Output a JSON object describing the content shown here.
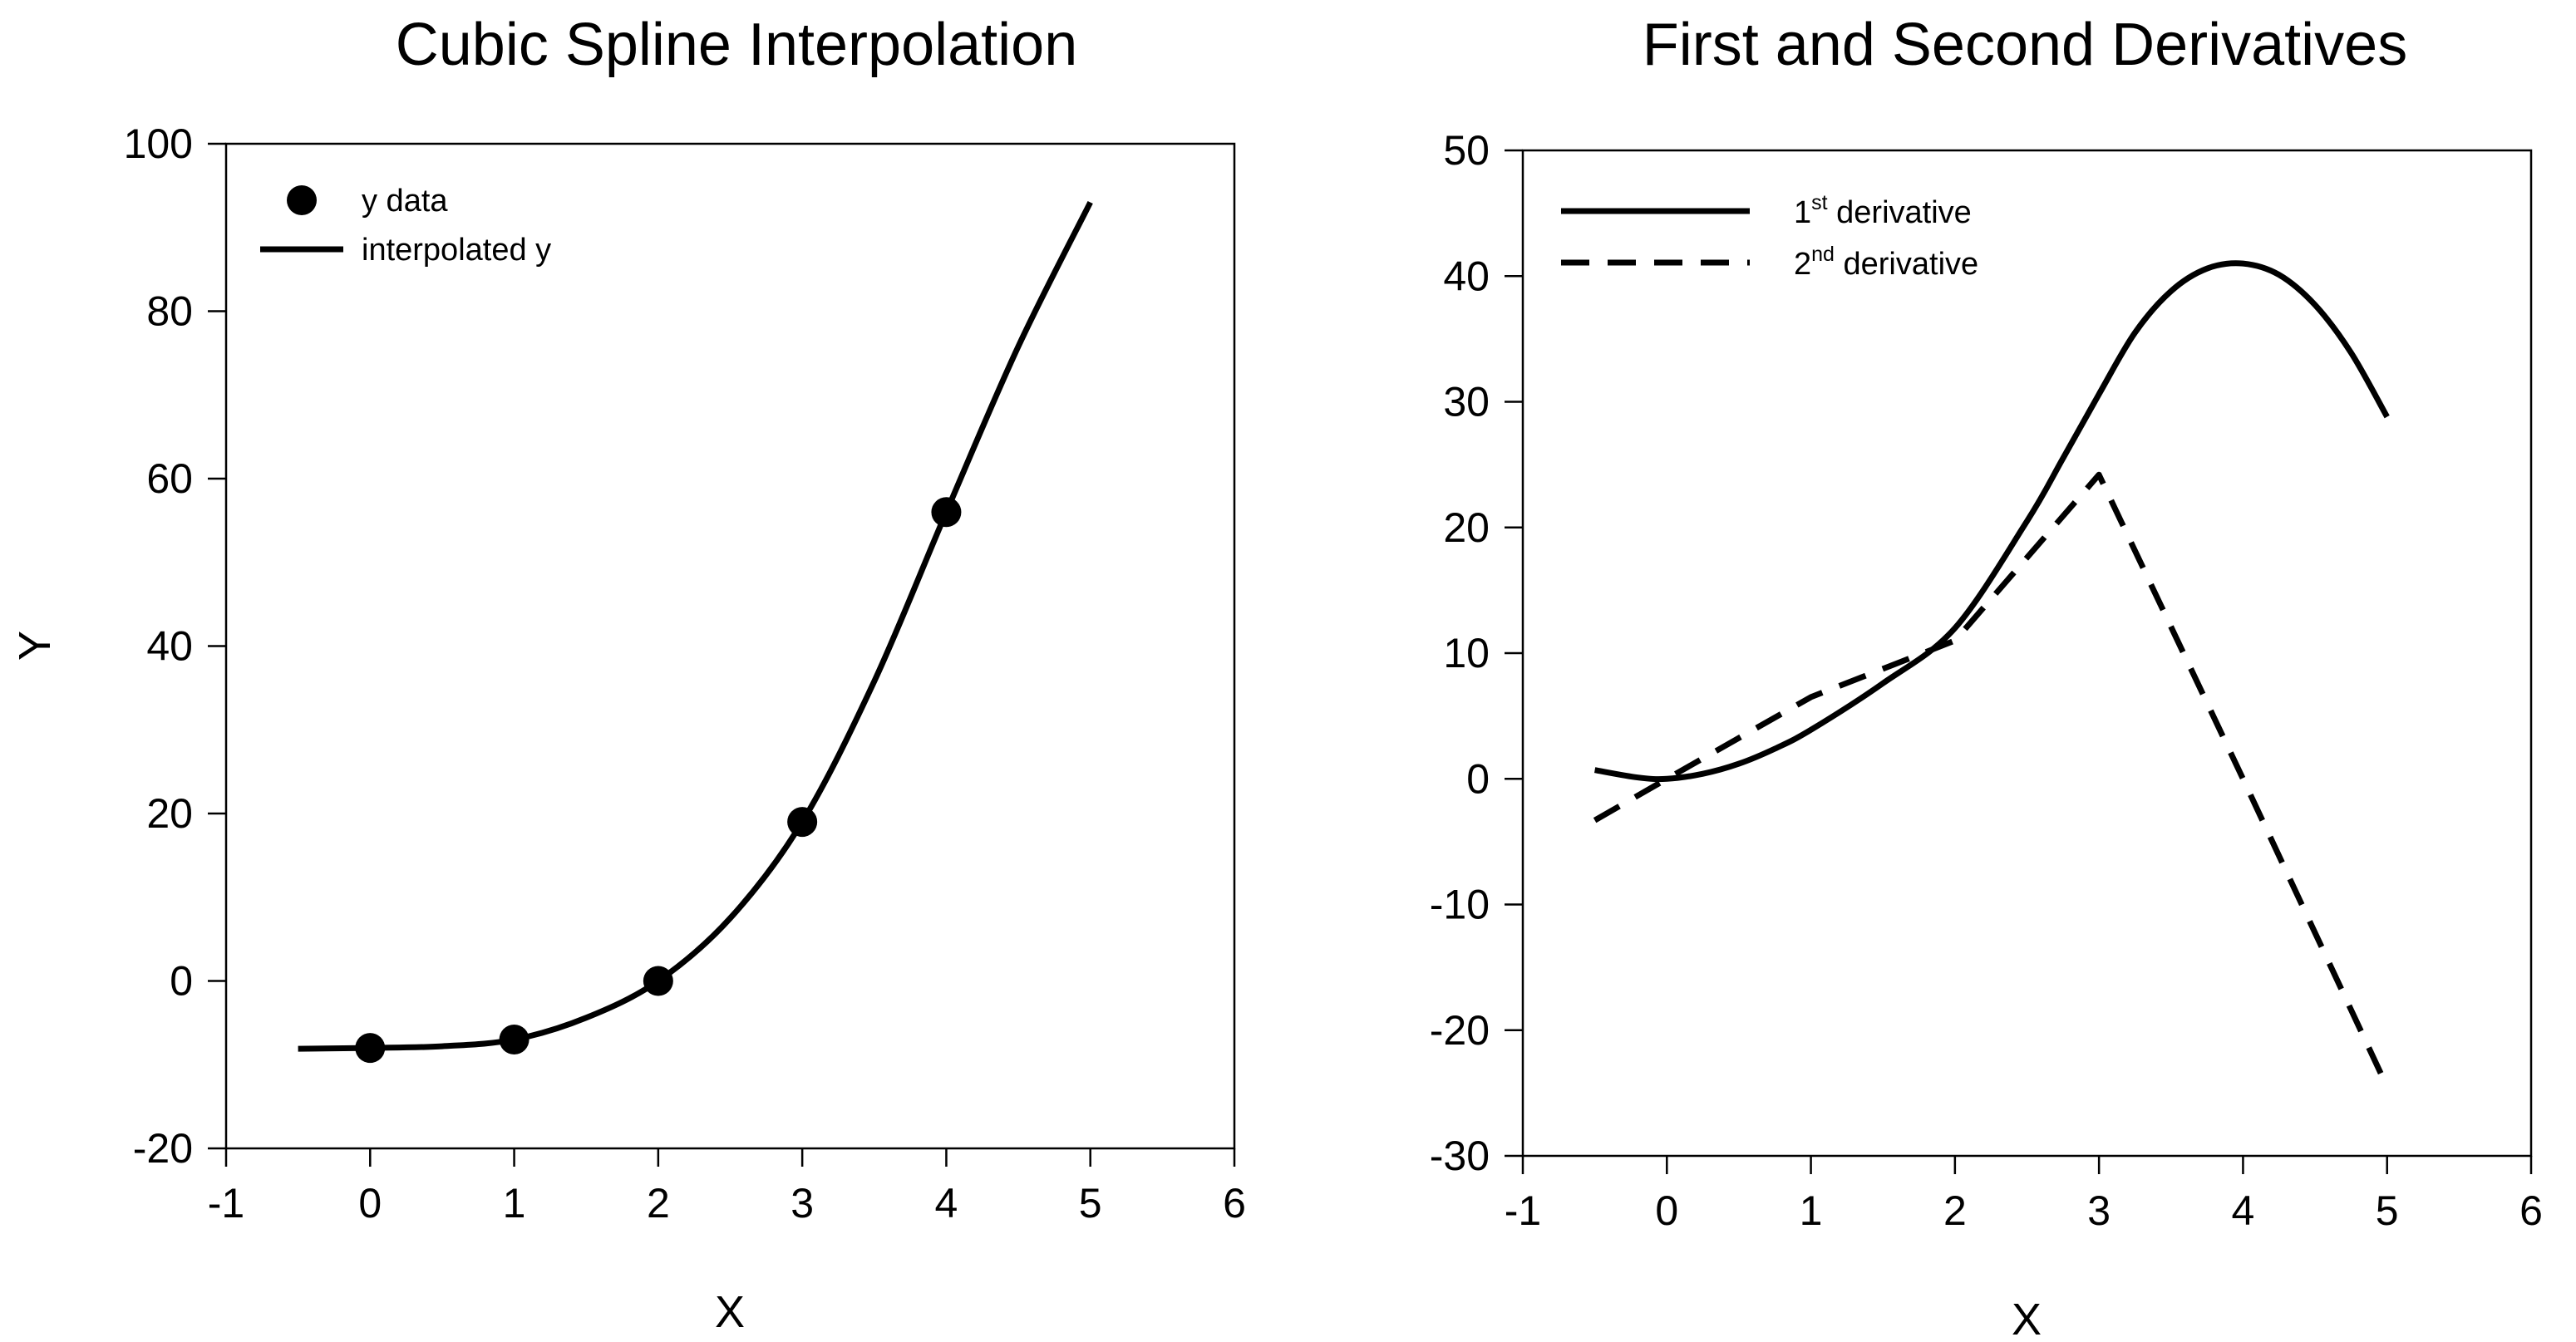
{
  "chart_data": [
    {
      "type": "line",
      "title": "Cubic Spline Interpolation",
      "xlabel": "X",
      "ylabel": "Y",
      "xlim": [
        -1,
        6
      ],
      "ylim": [
        -20,
        100
      ],
      "xticks": [
        -1,
        0,
        1,
        2,
        3,
        4,
        5,
        6
      ],
      "yticks": [
        -20,
        0,
        20,
        40,
        60,
        80,
        100
      ],
      "grid": false,
      "legend_position": "top-left",
      "series": [
        {
          "name": "y data",
          "style": "markers",
          "x": [
            0,
            1,
            2,
            3,
            4
          ],
          "y": [
            -8,
            -7,
            0,
            19,
            56
          ]
        },
        {
          "name": "interpolated y",
          "style": "solid",
          "x": [
            -0.5,
            0,
            0.5,
            1,
            1.5,
            2,
            2.5,
            3,
            3.5,
            4,
            4.5,
            5
          ],
          "y": [
            -8.1,
            -8,
            -7.8,
            -7,
            -4.4,
            0,
            7.5,
            19,
            35.8,
            56,
            75.8,
            93
          ]
        }
      ]
    },
    {
      "type": "line",
      "title": "First and Second Derivatives",
      "xlabel": "X",
      "ylabel": "",
      "xlim": [
        -1,
        6
      ],
      "ylim": [
        -30,
        50
      ],
      "xticks": [
        -1,
        0,
        1,
        2,
        3,
        4,
        5,
        6
      ],
      "yticks": [
        -30,
        -20,
        -10,
        0,
        10,
        20,
        30,
        40,
        50
      ],
      "grid": false,
      "legend_position": "top-left",
      "series": [
        {
          "name_main": "1",
          "name_sup": "st",
          "name_rest": " derivative",
          "style": "solid",
          "x": [
            -0.5,
            -0.2,
            0,
            0.25,
            0.5,
            0.75,
            1,
            1.5,
            2,
            2.5,
            2.75,
            3,
            3.25,
            3.5,
            3.75,
            4,
            4.25,
            4.5,
            4.75,
            5
          ],
          "y": [
            0.7,
            0.1,
            0,
            0.4,
            1.2,
            2.4,
            3.9,
            7.6,
            12,
            20.5,
            25.5,
            30.6,
            35.5,
            38.8,
            40.6,
            41,
            40.1,
            37.7,
            33.9,
            28.8
          ]
        },
        {
          "name_main": "2",
          "name_sup": "nd",
          "name_rest": " derivative",
          "style": "dashed",
          "x": [
            -0.5,
            0,
            1,
            2,
            3,
            4,
            5
          ],
          "y": [
            -3.3,
            0,
            6.5,
            11,
            24.2,
            0,
            -24.5
          ]
        }
      ]
    }
  ]
}
